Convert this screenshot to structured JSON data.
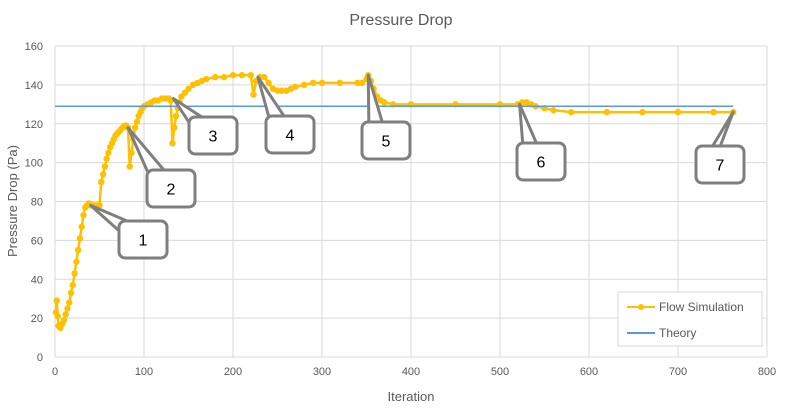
{
  "chart_data": {
    "type": "line",
    "title": "Pressure Drop",
    "xlabel": "Iteration",
    "ylabel": "Pressure Drop (Pa)",
    "xlim": [
      0,
      800
    ],
    "ylim": [
      0,
      160
    ],
    "x_ticks": [
      0,
      100,
      200,
      300,
      400,
      500,
      600,
      700,
      800
    ],
    "y_ticks": [
      0,
      20,
      40,
      60,
      80,
      100,
      120,
      140,
      160
    ],
    "grid": true,
    "legend_position": "bottom-right",
    "series": [
      {
        "name": "Flow Simulation",
        "color": "#FFC000",
        "marker": "circle",
        "points": [
          [
            1,
            23
          ],
          [
            2,
            29
          ],
          [
            3,
            21
          ],
          [
            4,
            16
          ],
          [
            6,
            15
          ],
          [
            8,
            17
          ],
          [
            10,
            19
          ],
          [
            12,
            22
          ],
          [
            14,
            25
          ],
          [
            16,
            28
          ],
          [
            18,
            33
          ],
          [
            20,
            37
          ],
          [
            22,
            43
          ],
          [
            24,
            49
          ],
          [
            26,
            55
          ],
          [
            28,
            61
          ],
          [
            30,
            67
          ],
          [
            32,
            73
          ],
          [
            34,
            77
          ],
          [
            36,
            78
          ],
          [
            38,
            79
          ],
          [
            40,
            78
          ],
          [
            42,
            78
          ],
          [
            44,
            78
          ],
          [
            46,
            78
          ],
          [
            48,
            78
          ],
          [
            50,
            78
          ],
          [
            52,
            90
          ],
          [
            54,
            94
          ],
          [
            56,
            98
          ],
          [
            58,
            102
          ],
          [
            60,
            105
          ],
          [
            62,
            108
          ],
          [
            64,
            110
          ],
          [
            66,
            112
          ],
          [
            68,
            114
          ],
          [
            70,
            115
          ],
          [
            72,
            116
          ],
          [
            74,
            117
          ],
          [
            76,
            118
          ],
          [
            78,
            119
          ],
          [
            80,
            119
          ],
          [
            82,
            118
          ],
          [
            84,
            98
          ],
          [
            86,
            105
          ],
          [
            88,
            112
          ],
          [
            90,
            118
          ],
          [
            92,
            121
          ],
          [
            94,
            124
          ],
          [
            96,
            126
          ],
          [
            98,
            128
          ],
          [
            100,
            129
          ],
          [
            104,
            130
          ],
          [
            108,
            131
          ],
          [
            112,
            132
          ],
          [
            116,
            132
          ],
          [
            120,
            133
          ],
          [
            124,
            133
          ],
          [
            128,
            133
          ],
          [
            130,
            132
          ],
          [
            132,
            110
          ],
          [
            134,
            118
          ],
          [
            136,
            124
          ],
          [
            138,
            128
          ],
          [
            140,
            131
          ],
          [
            142,
            134
          ],
          [
            146,
            136
          ],
          [
            150,
            138
          ],
          [
            155,
            140
          ],
          [
            160,
            141
          ],
          [
            165,
            142
          ],
          [
            170,
            143
          ],
          [
            180,
            144
          ],
          [
            190,
            144
          ],
          [
            200,
            145
          ],
          [
            210,
            145
          ],
          [
            220,
            145
          ],
          [
            223,
            135
          ],
          [
            226,
            142
          ],
          [
            230,
            144
          ],
          [
            235,
            144
          ],
          [
            240,
            141
          ],
          [
            245,
            138
          ],
          [
            250,
            137
          ],
          [
            255,
            137
          ],
          [
            260,
            137
          ],
          [
            265,
            138
          ],
          [
            270,
            139
          ],
          [
            280,
            140
          ],
          [
            290,
            141
          ],
          [
            300,
            141
          ],
          [
            320,
            141
          ],
          [
            340,
            141
          ],
          [
            345,
            141
          ],
          [
            350,
            143
          ],
          [
            352,
            145
          ],
          [
            355,
            142
          ],
          [
            358,
            138
          ],
          [
            362,
            134
          ],
          [
            366,
            132
          ],
          [
            370,
            131
          ],
          [
            380,
            130
          ],
          [
            400,
            130
          ],
          [
            450,
            130
          ],
          [
            500,
            130
          ],
          [
            520,
            130
          ],
          [
            525,
            131
          ],
          [
            530,
            131
          ],
          [
            535,
            130
          ],
          [
            540,
            129
          ],
          [
            550,
            128
          ],
          [
            560,
            127
          ],
          [
            580,
            126
          ],
          [
            620,
            126
          ],
          [
            660,
            126
          ],
          [
            700,
            126
          ],
          [
            740,
            126
          ],
          [
            762,
            126
          ]
        ]
      },
      {
        "name": "Theory",
        "color": "#5B9BD5",
        "marker": "none",
        "points": [
          [
            0,
            129
          ],
          [
            762,
            129
          ]
        ]
      }
    ],
    "annotations": [
      {
        "label": "1",
        "x": 40,
        "y": 78
      },
      {
        "label": "2",
        "x": 82,
        "y": 118
      },
      {
        "label": "3",
        "x": 133,
        "y": 133
      },
      {
        "label": "4",
        "x": 228,
        "y": 144
      },
      {
        "label": "5",
        "x": 352,
        "y": 145
      },
      {
        "label": "6",
        "x": 522,
        "y": 130
      },
      {
        "label": "7",
        "x": 762,
        "y": 126
      }
    ]
  }
}
